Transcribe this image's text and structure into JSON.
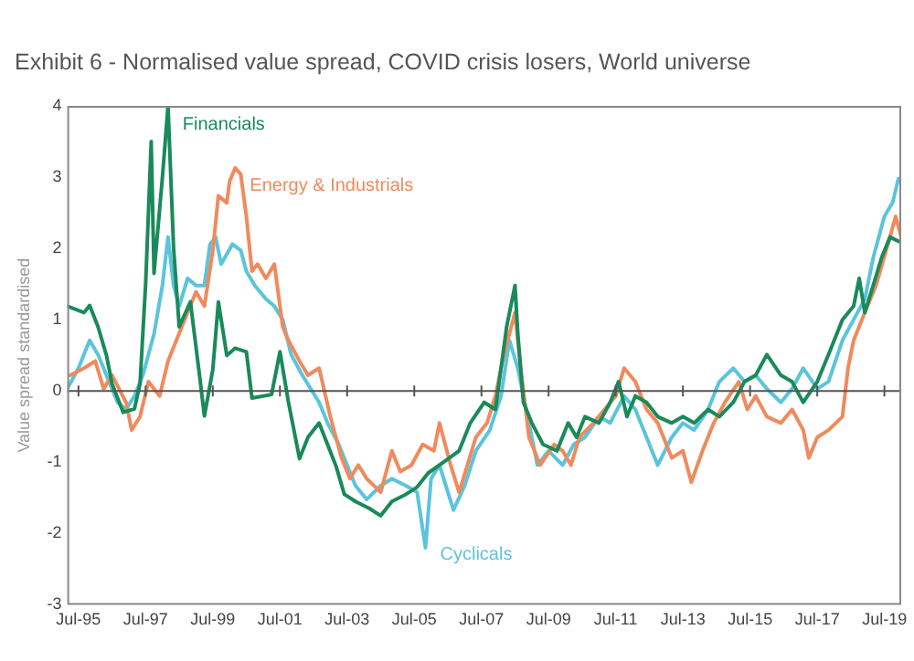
{
  "chart_data": {
    "type": "line",
    "title": "Exhibit 6 - Normalised value spread, COVID crisis losers, World universe",
    "ylabel": "Value spread standardised",
    "xlim": [
      "1995-03",
      "2020-01"
    ],
    "ylim": [
      -3,
      4
    ],
    "yticks": [
      -3,
      -2,
      -1,
      0,
      1,
      2,
      3,
      4
    ],
    "xticks": [
      {
        "value": "1995-07",
        "label": "Jul-95"
      },
      {
        "value": "1997-07",
        "label": "Jul-97"
      },
      {
        "value": "1999-07",
        "label": "Jul-99"
      },
      {
        "value": "2001-07",
        "label": "Jul-01"
      },
      {
        "value": "2003-07",
        "label": "Jul-03"
      },
      {
        "value": "2005-07",
        "label": "Jul-05"
      },
      {
        "value": "2007-07",
        "label": "Jul-07"
      },
      {
        "value": "2009-07",
        "label": "Jul-09"
      },
      {
        "value": "2011-07",
        "label": "Jul-11"
      },
      {
        "value": "2013-07",
        "label": "Jul-13"
      },
      {
        "value": "2015-07",
        "label": "Jul-15"
      },
      {
        "value": "2017-07",
        "label": "Jul-17"
      },
      {
        "value": "2019-07",
        "label": "Jul-19"
      }
    ],
    "grid": false,
    "legend": false,
    "marker": "none",
    "line_style": "solid",
    "ref_lines": [
      {
        "axis": "y",
        "value": 0,
        "color": "#555555"
      }
    ],
    "series": [
      {
        "name": "Financials",
        "color": "#1a8a5a",
        "x": [
          "1995-03",
          "1995-09",
          "1995-11",
          "1996-02",
          "1996-05",
          "1996-07",
          "1996-11",
          "1997-03",
          "1997-05",
          "1997-07",
          "1997-09",
          "1997-10",
          "1998-01",
          "1998-03",
          "1998-05",
          "1998-07",
          "1998-11",
          "1999-02",
          "1999-04",
          "1999-07",
          "1999-09",
          "1999-12",
          "2000-03",
          "2000-07",
          "2000-09",
          "2001-04",
          "2001-07",
          "2001-10",
          "2002-02",
          "2002-05",
          "2002-09",
          "2002-11",
          "2003-03",
          "2003-06",
          "2003-10",
          "2004-03",
          "2004-07",
          "2004-11",
          "2005-04",
          "2005-08",
          "2005-12",
          "2006-04",
          "2006-11",
          "2007-03",
          "2007-08",
          "2007-12",
          "2008-02",
          "2008-04",
          "2008-07",
          "2008-08",
          "2008-10",
          "2009-01",
          "2009-05",
          "2009-10",
          "2010-02",
          "2010-05",
          "2010-08",
          "2011-01",
          "2011-05",
          "2011-08",
          "2011-11",
          "2012-02",
          "2012-06",
          "2012-10",
          "2013-03",
          "2013-07",
          "2013-11",
          "2014-04",
          "2014-08",
          "2015-01",
          "2015-05",
          "2015-09",
          "2016-01",
          "2016-06",
          "2016-10",
          "2017-02",
          "2017-07",
          "2017-11",
          "2018-04",
          "2018-08",
          "2018-10",
          "2018-12",
          "2019-03",
          "2019-06",
          "2019-09",
          "2019-12"
        ],
        "values": [
          1.19,
          1.1,
          1.2,
          0.9,
          0.5,
          0.1,
          -0.3,
          -0.25,
          0.1,
          1.5,
          3.5,
          1.65,
          3.0,
          4.0,
          2.0,
          0.9,
          1.25,
          0.3,
          -0.35,
          0.3,
          1.25,
          0.5,
          0.6,
          0.55,
          -0.1,
          -0.05,
          0.55,
          -0.15,
          -0.95,
          -0.65,
          -0.45,
          -0.65,
          -1.05,
          -1.45,
          -1.55,
          -1.65,
          -1.75,
          -1.55,
          -1.45,
          -1.35,
          -1.15,
          -1.04,
          -0.84,
          -0.45,
          -0.16,
          -0.26,
          0.32,
          0.9,
          1.48,
          0.8,
          -0.16,
          -0.45,
          -0.75,
          -0.84,
          -0.45,
          -0.65,
          -0.36,
          -0.45,
          -0.16,
          0.13,
          -0.36,
          -0.07,
          -0.16,
          -0.36,
          -0.45,
          -0.36,
          -0.45,
          -0.26,
          -0.36,
          -0.16,
          0.13,
          0.22,
          0.51,
          0.22,
          0.13,
          -0.16,
          0.13,
          0.51,
          1.0,
          1.19,
          1.58,
          1.1,
          1.48,
          1.87,
          2.16,
          2.1
        ]
      },
      {
        "name": "Energy & Industrials",
        "color": "#f08a5d",
        "x": [
          "1995-04",
          "1995-09",
          "1996-01",
          "1996-04",
          "1996-07",
          "1996-12",
          "1997-02",
          "1997-05",
          "1997-08",
          "1997-12",
          "1998-03",
          "1998-06",
          "1998-10",
          "1999-01",
          "1999-04",
          "1999-07",
          "1999-09",
          "1999-12",
          "2000-01",
          "2000-03",
          "2000-05",
          "2000-07",
          "2000-09",
          "2000-11",
          "2001-02",
          "2001-05",
          "2001-08",
          "2001-10",
          "2002-02",
          "2002-05",
          "2002-09",
          "2003-01",
          "2003-05",
          "2003-08",
          "2003-11",
          "2004-02",
          "2004-07",
          "2004-11",
          "2005-02",
          "2005-06",
          "2005-10",
          "2006-02",
          "2006-04",
          "2006-08",
          "2006-11",
          "2007-02",
          "2007-05",
          "2007-09",
          "2007-12",
          "2008-03",
          "2008-07",
          "2008-09",
          "2008-12",
          "2009-04",
          "2009-09",
          "2009-12",
          "2010-03",
          "2010-06",
          "2010-11",
          "2011-03",
          "2011-07",
          "2011-10",
          "2012-02",
          "2012-06",
          "2012-10",
          "2013-03",
          "2013-07",
          "2013-10",
          "2014-02",
          "2014-06",
          "2014-10",
          "2015-03",
          "2015-06",
          "2015-09",
          "2016-01",
          "2016-06",
          "2016-10",
          "2017-02",
          "2017-04",
          "2017-07",
          "2017-11",
          "2018-04",
          "2018-06",
          "2018-08",
          "2018-12",
          "2019-04",
          "2019-09",
          "2019-11",
          "2020-01"
        ],
        "values": [
          0.22,
          0.32,
          0.42,
          0.03,
          0.22,
          -0.16,
          -0.55,
          -0.36,
          0.13,
          -0.07,
          0.42,
          0.71,
          1.1,
          1.39,
          1.19,
          1.97,
          2.74,
          2.64,
          2.94,
          3.13,
          3.04,
          2.45,
          1.68,
          1.78,
          1.58,
          1.78,
          0.9,
          0.71,
          0.42,
          0.22,
          0.32,
          -0.36,
          -0.94,
          -1.23,
          -1.04,
          -1.23,
          -1.42,
          -0.84,
          -1.13,
          -1.04,
          -0.75,
          -0.84,
          -0.45,
          -1.04,
          -1.42,
          -1.04,
          -0.65,
          -0.45,
          -0.07,
          0.51,
          1.1,
          0.32,
          -0.65,
          -1.04,
          -0.75,
          -0.84,
          -1.04,
          -0.65,
          -0.45,
          -0.26,
          -0.07,
          0.32,
          0.13,
          -0.26,
          -0.45,
          -0.94,
          -0.84,
          -1.28,
          -0.84,
          -0.45,
          -0.16,
          0.13,
          -0.26,
          -0.07,
          -0.36,
          -0.45,
          -0.26,
          -0.55,
          -0.94,
          -0.65,
          -0.55,
          -0.36,
          0.32,
          0.71,
          1.1,
          1.48,
          2.16,
          2.45,
          2.16
        ]
      },
      {
        "name": "Cyclicals",
        "color": "#5bc4dc",
        "x": [
          "1995-03",
          "1995-07",
          "1995-11",
          "1996-02",
          "1996-05",
          "1996-09",
          "1996-12",
          "1997-03",
          "1997-06",
          "1997-10",
          "1998-01",
          "1998-03",
          "1998-05",
          "1998-07",
          "1998-10",
          "1999-01",
          "1999-04",
          "1999-06",
          "1999-08",
          "1999-10",
          "2000-02",
          "2000-05",
          "2000-07",
          "2000-10",
          "2001-02",
          "2001-05",
          "2001-08",
          "2001-11",
          "2002-03",
          "2002-06",
          "2002-09",
          "2002-12",
          "2003-04",
          "2003-07",
          "2003-10",
          "2004-02",
          "2004-07",
          "2004-11",
          "2005-04",
          "2005-08",
          "2005-11",
          "2006-01",
          "2006-04",
          "2006-09",
          "2007-01",
          "2007-05",
          "2007-10",
          "2008-02",
          "2008-05",
          "2008-08",
          "2008-11",
          "2009-03",
          "2009-07",
          "2009-12",
          "2010-04",
          "2010-08",
          "2011-01",
          "2011-05",
          "2011-10",
          "2012-02",
          "2012-06",
          "2012-10",
          "2013-03",
          "2013-07",
          "2013-11",
          "2014-04",
          "2014-08",
          "2015-01",
          "2015-05",
          "2015-09",
          "2016-01",
          "2016-06",
          "2016-10",
          "2017-02",
          "2017-07",
          "2017-11",
          "2018-04",
          "2018-08",
          "2018-12",
          "2019-03",
          "2019-07",
          "2019-10",
          "2019-12"
        ],
        "values": [
          0.03,
          0.32,
          0.71,
          0.51,
          0.22,
          -0.16,
          -0.26,
          -0.07,
          0.22,
          0.8,
          1.48,
          2.16,
          1.48,
          1.19,
          1.58,
          1.48,
          1.48,
          2.06,
          2.16,
          1.78,
          2.06,
          1.97,
          1.68,
          1.48,
          1.29,
          1.19,
          1.0,
          0.51,
          0.22,
          0.03,
          -0.16,
          -0.45,
          -0.75,
          -1.04,
          -1.33,
          -1.52,
          -1.33,
          -1.23,
          -1.33,
          -1.42,
          -2.2,
          -1.23,
          -1.04,
          -1.67,
          -1.33,
          -0.84,
          -0.55,
          -0.07,
          0.71,
          0.32,
          -0.26,
          -1.04,
          -0.84,
          -1.04,
          -0.75,
          -0.65,
          -0.36,
          -0.45,
          -0.07,
          -0.26,
          -0.65,
          -1.04,
          -0.65,
          -0.45,
          -0.55,
          -0.26,
          0.13,
          0.32,
          0.13,
          0.22,
          0.03,
          -0.16,
          0.03,
          0.32,
          0.03,
          0.13,
          0.71,
          1.0,
          1.29,
          1.87,
          2.45,
          2.65,
          2.98
        ]
      }
    ]
  }
}
